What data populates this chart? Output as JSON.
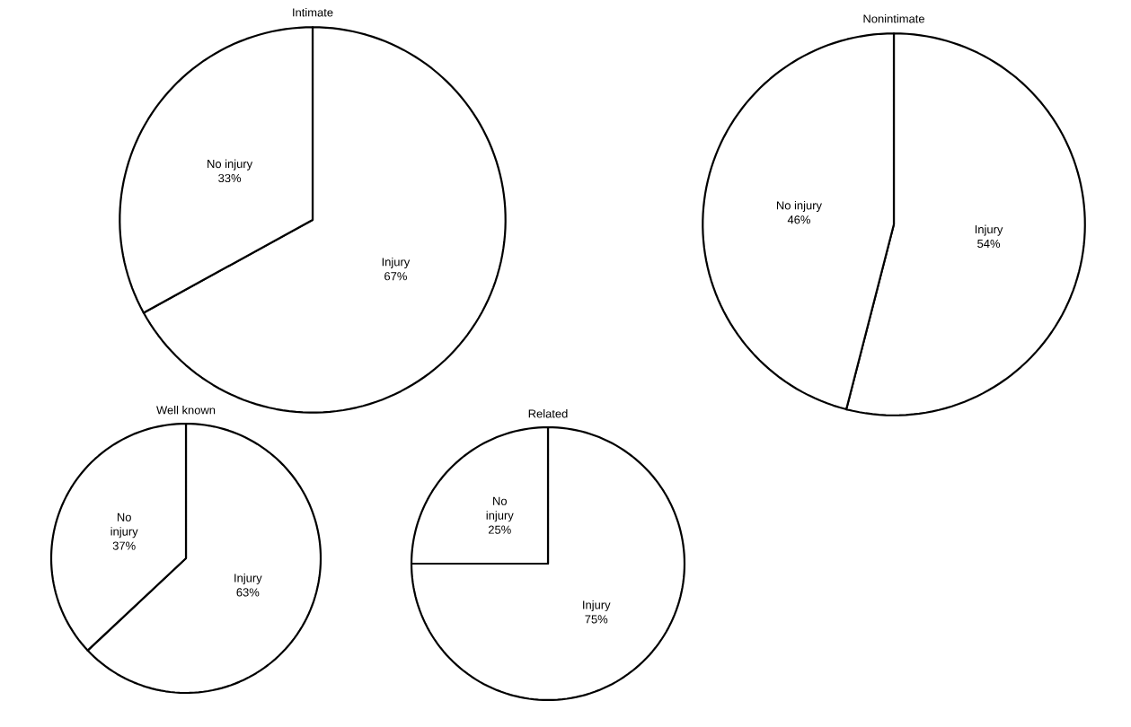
{
  "chart_data": [
    {
      "type": "pie",
      "title": "Intimate",
      "categories": [
        "Injury",
        "No injury"
      ],
      "values": [
        67,
        33
      ],
      "value_labels": [
        "67%",
        "33%"
      ],
      "colors": [
        "#ffffff",
        "#ffffff"
      ]
    },
    {
      "type": "pie",
      "title": "Nonintimate",
      "categories": [
        "Injury",
        "No injury"
      ],
      "values": [
        54,
        46
      ],
      "value_labels": [
        "54%",
        "46%"
      ],
      "colors": [
        "#ffffff",
        "#ffffff"
      ]
    },
    {
      "type": "pie",
      "title": "Well known",
      "categories": [
        "Injury",
        "No injury"
      ],
      "values": [
        63,
        37
      ],
      "value_labels": [
        "63%",
        "37%"
      ],
      "colors": [
        "#ffffff",
        "#ffffff"
      ]
    },
    {
      "type": "pie",
      "title": "Related",
      "categories": [
        "Injury",
        "No injury"
      ],
      "values": [
        75,
        25
      ],
      "value_labels": [
        "75%",
        "25%"
      ],
      "colors": [
        "#ffffff",
        "#ffffff"
      ]
    }
  ]
}
